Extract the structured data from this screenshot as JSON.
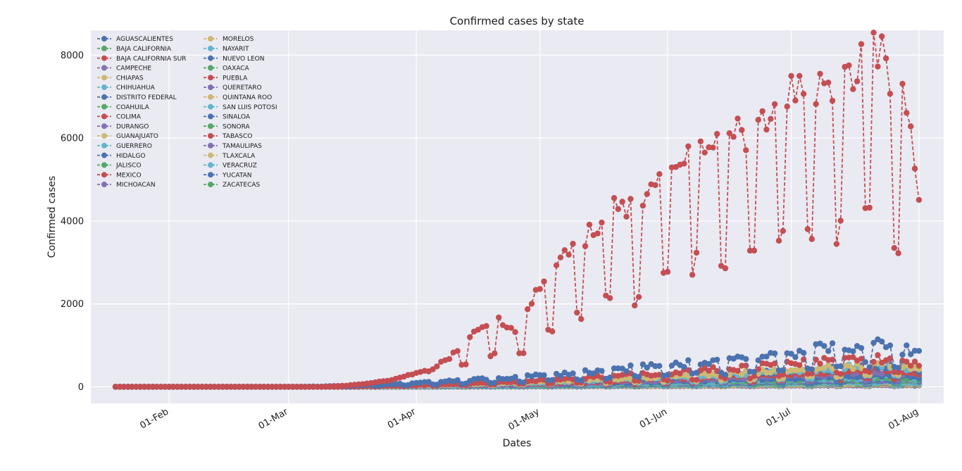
{
  "chart_data": {
    "type": "line",
    "title": "Confirmed cases by state",
    "xlabel": "Dates",
    "ylabel": "Confirmed cases",
    "x_range": [
      "2020-01-13",
      "2020-08-07"
    ],
    "ylim": [
      -400,
      8600
    ],
    "yticks": [
      0,
      2000,
      4000,
      6000,
      8000
    ],
    "xticks": [
      {
        "date": "2020-02-01",
        "label": "01-Feb"
      },
      {
        "date": "2020-03-01",
        "label": "01-Mar"
      },
      {
        "date": "2020-04-01",
        "label": "01-Apr"
      },
      {
        "date": "2020-05-01",
        "label": "01-May"
      },
      {
        "date": "2020-06-01",
        "label": "01-Jun"
      },
      {
        "date": "2020-07-01",
        "label": "01-Jul"
      },
      {
        "date": "2020-08-01",
        "label": "01-Aug"
      }
    ],
    "grid": true,
    "line_style": "dashed",
    "marker": "circle",
    "legend_position": "top-left",
    "legend_columns": 2,
    "plot_background": "#eaeaf2",
    "palette": [
      "#4c72b0",
      "#55a868",
      "#c44e52",
      "#8172b2",
      "#ccb974",
      "#64b5cd"
    ],
    "date_start": "2020-01-19",
    "date_end": "2020-08-01",
    "series": [
      {
        "name": "AGUASCALIENTES",
        "color": "#4c72b0",
        "start": "2020-03-10",
        "peak": 40
      },
      {
        "name": "BAJA CALIFORNIA",
        "color": "#55a868",
        "start": "2020-03-05",
        "peak": 110
      },
      {
        "name": "BAJA CALIFORNIA SUR",
        "color": "#c44e52",
        "start": "2020-03-15",
        "peak": 70
      },
      {
        "name": "CAMPECHE",
        "color": "#8172b2",
        "start": "2020-03-20",
        "peak": 60
      },
      {
        "name": "CHIAPAS",
        "color": "#ccb974",
        "start": "2020-03-18",
        "peak": 100
      },
      {
        "name": "CHIHUAHUA",
        "color": "#64b5cd",
        "start": "2020-03-20",
        "peak": 120
      },
      {
        "name": "DISTRITO FEDERAL",
        "color": "#4c72b0",
        "start": "2020-03-01",
        "peak": 1100,
        "peak_date": "2020-07-20"
      },
      {
        "name": "COAHUILA",
        "color": "#55a868",
        "start": "2020-03-15",
        "peak": 190
      },
      {
        "name": "COLIMA",
        "color": "#c44e52",
        "start": "2020-03-20",
        "peak": 50
      },
      {
        "name": "DURANGO",
        "color": "#8172b2",
        "start": "2020-03-18",
        "peak": 70
      },
      {
        "name": "GUANAJUATO",
        "color": "#ccb974",
        "start": "2020-03-10",
        "peak": 600
      },
      {
        "name": "GUERRERO",
        "color": "#64b5cd",
        "start": "2020-03-15",
        "peak": 220
      },
      {
        "name": "HIDALGO",
        "color": "#4c72b0",
        "start": "2020-03-15",
        "peak": 170
      },
      {
        "name": "JALISCO",
        "color": "#55a868",
        "start": "2020-03-10",
        "peak": 240
      },
      {
        "name": "MEXICO",
        "color": "#c44e52",
        "start": "2020-03-01",
        "peak": 8200,
        "peak_date": "2020-07-23"
      },
      {
        "name": "MICHOACAN",
        "color": "#8172b2",
        "start": "2020-03-15",
        "peak": 190
      },
      {
        "name": "MORELOS",
        "color": "#ccb974",
        "start": "2020-03-18",
        "peak": 70
      },
      {
        "name": "NAYARIT",
        "color": "#64b5cd",
        "start": "2020-03-20",
        "peak": 70
      },
      {
        "name": "NUEVO LEON",
        "color": "#4c72b0",
        "start": "2020-03-10",
        "peak": 540
      },
      {
        "name": "OAXACA",
        "color": "#55a868",
        "start": "2020-03-18",
        "peak": 160
      },
      {
        "name": "PUEBLA",
        "color": "#c44e52",
        "start": "2020-03-10",
        "peak": 750,
        "peak_date": "2020-07-20"
      },
      {
        "name": "QUERETARO",
        "color": "#8172b2",
        "start": "2020-03-15",
        "peak": 100
      },
      {
        "name": "QUINTANA ROO",
        "color": "#ccb974",
        "start": "2020-03-12",
        "peak": 110
      },
      {
        "name": "SAN LUIS POTOSI",
        "color": "#64b5cd",
        "start": "2020-03-18",
        "peak": 290
      },
      {
        "name": "SINALOA",
        "color": "#4c72b0",
        "start": "2020-03-10",
        "peak": 290
      },
      {
        "name": "SONORA",
        "color": "#55a868",
        "start": "2020-03-15",
        "peak": 280
      },
      {
        "name": "TABASCO",
        "color": "#c44e52",
        "start": "2020-03-15",
        "peak": 450
      },
      {
        "name": "TAMAULIPAS",
        "color": "#8172b2",
        "start": "2020-03-15",
        "peak": 380
      },
      {
        "name": "TLAXCALA",
        "color": "#ccb974",
        "start": "2020-03-20",
        "peak": 70
      },
      {
        "name": "VERACRUZ",
        "color": "#64b5cd",
        "start": "2020-03-15",
        "peak": 560
      },
      {
        "name": "YUCATAN",
        "color": "#4c72b0",
        "start": "2020-03-15",
        "peak": 210
      },
      {
        "name": "ZACATECAS",
        "color": "#55a868",
        "start": "2020-03-20",
        "peak": 90
      }
    ],
    "mexico_detail": {
      "dates": [
        "2020-03-15",
        "2020-03-20",
        "2020-03-25",
        "2020-03-31",
        "2020-04-05",
        "2020-04-10",
        "2020-04-15",
        "2020-04-20",
        "2020-04-25",
        "2020-04-30",
        "2020-05-05",
        "2020-05-10",
        "2020-05-15",
        "2020-05-20",
        "2020-05-25",
        "2020-05-31",
        "2020-06-05",
        "2020-06-10",
        "2020-06-15",
        "2020-06-20",
        "2020-06-25",
        "2020-06-30",
        "2020-07-05",
        "2020-07-10",
        "2020-07-15",
        "2020-07-20",
        "2020-07-23",
        "2020-07-26",
        "2020-07-29",
        "2020-08-01"
      ],
      "values": [
        30,
        80,
        150,
        300,
        420,
        800,
        1300,
        1700,
        1400,
        2300,
        2850,
        3500,
        3900,
        4400,
        4200,
        5100,
        5600,
        6100,
        6000,
        6200,
        6500,
        7200,
        7300,
        7400,
        7500,
        8000,
        8200,
        7300,
        6800,
        4800
      ]
    }
  }
}
